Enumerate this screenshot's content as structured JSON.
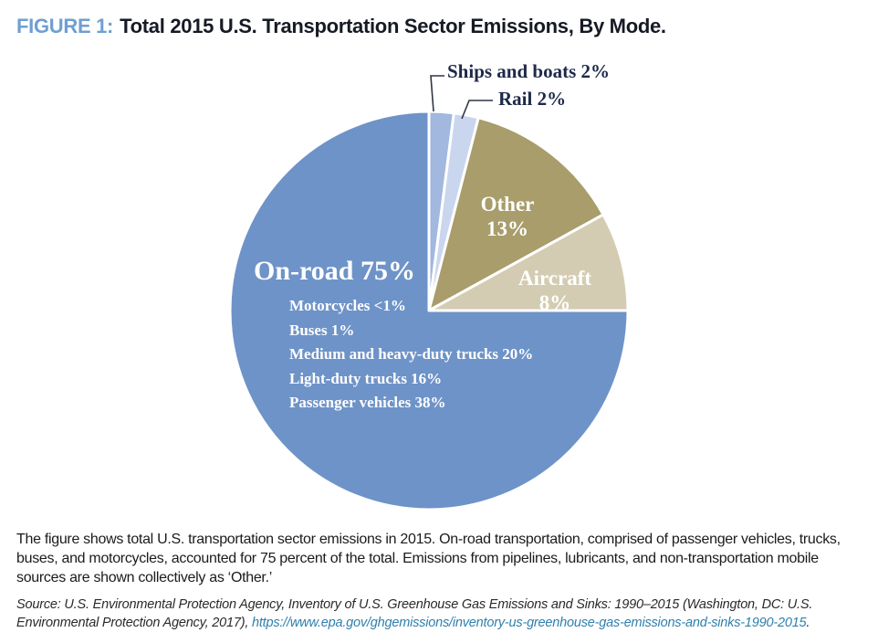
{
  "figure": {
    "label": "FIGURE 1:",
    "title": "Total 2015 U.S. Transportation Sector Emissions, By Mode."
  },
  "chart_data": {
    "type": "pie",
    "title": "Total 2015 U.S. Transportation Sector Emissions, By Mode",
    "units": "percent of total 2015 U.S. transportation sector emissions",
    "direction": "clockwise",
    "start_angle_deg": 0,
    "legend": "none (labels on or beside slices)",
    "slices": [
      {
        "id": "ships-and-boats",
        "label": "Ships and boats",
        "value": 2,
        "color": "#a2b8de",
        "label_text": "Ships and boats 2%"
      },
      {
        "id": "rail",
        "label": "Rail",
        "value": 2,
        "color": "#c9d6ee",
        "label_text": "Rail 2%"
      },
      {
        "id": "other",
        "label": "Other",
        "value": 13,
        "color": "#a89d6b",
        "label_text_line1": "Other",
        "label_text_line2": "13%"
      },
      {
        "id": "aircraft",
        "label": "Aircraft",
        "value": 8,
        "color": "#d4ccb2",
        "label_text_line1": "Aircraft",
        "label_text_line2": "8%"
      },
      {
        "id": "on-road",
        "label": "On-road",
        "value": 75,
        "color": "#6e93c8",
        "label_text": "On-road 75%"
      }
    ],
    "on_road_breakdown": [
      {
        "label": "Motorcycles",
        "value": "<1%",
        "text": "Motorcycles <1%"
      },
      {
        "label": "Buses",
        "value": "1%",
        "text": "Buses 1%"
      },
      {
        "label": "Medium and heavy-duty trucks",
        "value": "20%",
        "text": "Medium and heavy-duty trucks 20%"
      },
      {
        "label": "Light-duty trucks",
        "value": "16%",
        "text": "Light-duty trucks 16%"
      },
      {
        "label": "Passenger vehicles",
        "value": "38%",
        "text": "Passenger vehicles 38%"
      }
    ]
  },
  "caption": "The figure shows total U.S. transportation sector emissions in 2015. On-road transportation, comprised of passenger vehicles, trucks, buses, and motorcycles, accounted for 75 percent of the total. Emissions from pipelines, lubricants, and non-transportation mobile sources are shown collectively as ‘Other.’",
  "source": {
    "prefix": "Source: U.S. Environmental Protection Agency, Inventory of U.S. Greenhouse Gas Emissions and Sinks: 1990–2015 (Washington, DC: U.S. Environmental Protection Agency, 2017), ",
    "link": "https://www.epa.gov/ghgemissions/inventory-us-greenhouse-gas-emissions-and-sinks-1990-2015",
    "suffix": "."
  },
  "colors": {
    "figure_label_blue": "#6f9fd2",
    "title_dark": "#161a24",
    "on_road_blue": "#6e93c8",
    "ships_blue": "#a2b8de",
    "rail_blue": "#c9d6ee",
    "other_khaki": "#a89d6b",
    "aircraft_tan": "#d4ccb2",
    "callout_text_navy": "#1d2949",
    "link_teal": "#2f7fad"
  }
}
